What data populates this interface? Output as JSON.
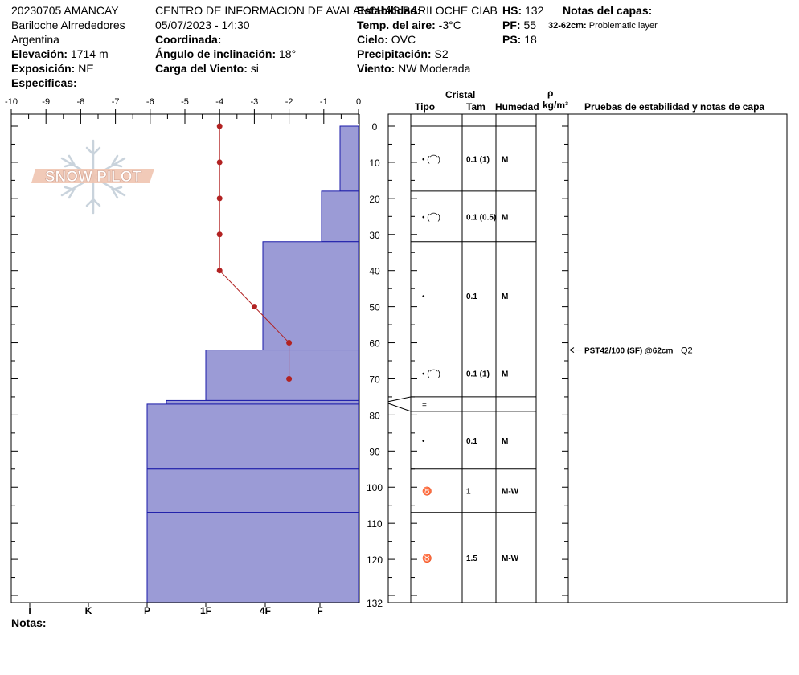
{
  "header": {
    "col1": [
      "20230705 AMANCAY",
      "Bariloche Alrrededores",
      "Argentina"
    ],
    "elevation_label": "Elevación:",
    "elevation_value": "1714 m",
    "aspect_label": "Exposición:",
    "aspect_value": "NE",
    "specifics_label": "Especificas:",
    "org": "CENTRO DE INFORMACION DE AVALANCHAS BARILOCHE CIAB",
    "datetime": "05/07/2023 - 14:30",
    "coord_label": "Coordinada:",
    "slope_label": "Ángulo de inclinación:",
    "slope_value": "18°",
    "wind_load_label": "Carga del Viento:",
    "wind_load_value": "si",
    "stability_label": "Estabilidad:",
    "air_temp_label": "Temp. del aire:",
    "air_temp_value": "-3°C",
    "sky_label": "Cielo:",
    "sky_value": "OVC",
    "precip_label": "Precipitación:",
    "precip_value": "S2",
    "wind_label": "Viento:",
    "wind_value": "NW Moderada",
    "hs_label": "HS:",
    "hs_value": "132",
    "pf_label": "PF:",
    "pf_value": "55",
    "ps_label": "PS:",
    "ps_value": "18",
    "layer_notes_label": "Notas del capas:",
    "layer_note_range": "32-62cm:",
    "layer_note_text": "Problematic layer"
  },
  "columns": {
    "crystal": "Cristal",
    "type": "Tipo",
    "size": "Tam",
    "moisture": "Humedad",
    "density_symbol": "ρ",
    "density_unit": "kg/m³",
    "tests": "Pruebas de estabilidad y notas de capa"
  },
  "notes_label": "Notas:",
  "logo_text": "SNOW PILOT",
  "colors": {
    "hardness_fill": "#9b9bd6",
    "hardness_line": "#1a1aa8",
    "temp": "#b22222"
  },
  "chart_data": {
    "type": "snow-profile",
    "temp_axis": {
      "ticks": [
        -10,
        -9,
        -8,
        -7,
        -6,
        -5,
        -4,
        -3,
        -2,
        -1,
        0
      ],
      "range": [
        -10,
        0
      ]
    },
    "depth_axis": {
      "labels": [
        0,
        10,
        20,
        30,
        40,
        50,
        60,
        70,
        80,
        90,
        100,
        110,
        120,
        132
      ],
      "range": [
        0,
        132
      ]
    },
    "hardness_axis": [
      "I",
      "K",
      "P",
      "1F",
      "4F",
      "F"
    ],
    "temperature": [
      {
        "depth": 0,
        "temp": -4
      },
      {
        "depth": 10,
        "temp": -4
      },
      {
        "depth": 20,
        "temp": -4
      },
      {
        "depth": 30,
        "temp": -4
      },
      {
        "depth": 40,
        "temp": -4
      },
      {
        "depth": 50,
        "temp": -3
      },
      {
        "depth": 60,
        "temp": -2
      },
      {
        "depth": 70,
        "temp": -2
      }
    ],
    "hardness_layers": [
      {
        "top": 0,
        "bottom": 18,
        "hardness": "F+"
      },
      {
        "top": 18,
        "bottom": 32,
        "hardness": "F-"
      },
      {
        "top": 32,
        "bottom": 62,
        "hardness": "4F+"
      },
      {
        "top": 62,
        "bottom": 76,
        "hardness": "1F"
      },
      {
        "top": 76,
        "bottom": 77,
        "hardness": "P-"
      },
      {
        "top": 77,
        "bottom": 95,
        "hardness": "P"
      },
      {
        "top": 95,
        "bottom": 107,
        "hardness": "P"
      },
      {
        "top": 107,
        "bottom": 132,
        "hardness": "P"
      }
    ],
    "layer_table": [
      {
        "top": 0,
        "bottom": 18,
        "type": "• (⌒)",
        "size": "0.1 (1)",
        "moisture": "M"
      },
      {
        "top": 18,
        "bottom": 32,
        "type": "• (⌒)",
        "size": "0.1 (0.5)",
        "moisture": "M"
      },
      {
        "top": 32,
        "bottom": 62,
        "type": "•",
        "size": "0.1",
        "moisture": "M"
      },
      {
        "top": 62,
        "bottom": 75,
        "type": "• (⌒)",
        "size": "0.1 (1)",
        "moisture": "M"
      },
      {
        "top": 75,
        "bottom": 79,
        "type": "=",
        "size": "",
        "moisture": ""
      },
      {
        "top": 79,
        "bottom": 95,
        "type": "•",
        "size": "0.1",
        "moisture": "M"
      },
      {
        "top": 95,
        "bottom": 107,
        "type": "♉",
        "size": "1",
        "moisture": "M-W"
      },
      {
        "top": 107,
        "bottom": 132,
        "type": "♉",
        "size": "1.5",
        "moisture": "M-W"
      }
    ],
    "tests": [
      {
        "depth": 62,
        "text": "PST42/100 (SF) @62cm",
        "extra": "Q2"
      }
    ]
  }
}
